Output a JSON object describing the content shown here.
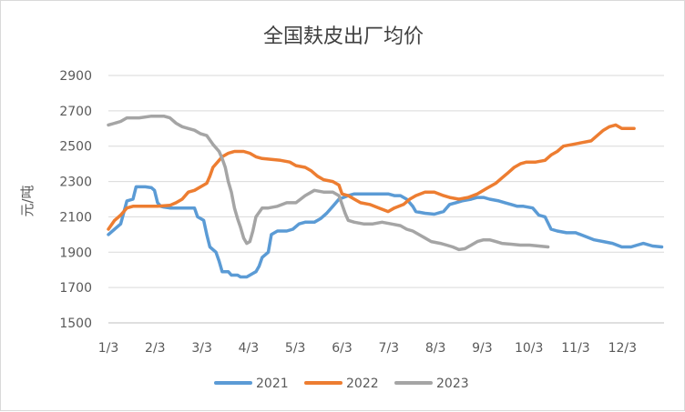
{
  "chart_data": {
    "type": "line",
    "title": "全国麸皮出厂均价",
    "ylabel": "元/吨",
    "xlabel": "",
    "ylim": [
      1500,
      2900
    ],
    "yticks": [
      1500,
      1700,
      1900,
      2100,
      2300,
      2500,
      2700,
      2900
    ],
    "xticks": [
      "1/3",
      "2/3",
      "3/3",
      "4/3",
      "5/3",
      "6/3",
      "7/3",
      "8/3",
      "9/3",
      "10/3",
      "11/3",
      "12/3"
    ],
    "xlim_days": [
      0,
      360
    ],
    "grid": true,
    "legend_position": "bottom",
    "series": [
      {
        "name": "2021",
        "color": "#5b9bd5",
        "points": [
          [
            0,
            2000
          ],
          [
            4,
            2030
          ],
          [
            8,
            2060
          ],
          [
            12,
            2190
          ],
          [
            16,
            2200
          ],
          [
            18,
            2270
          ],
          [
            24,
            2270
          ],
          [
            28,
            2265
          ],
          [
            30,
            2250
          ],
          [
            32,
            2180
          ],
          [
            34,
            2160
          ],
          [
            36,
            2155
          ],
          [
            40,
            2150
          ],
          [
            48,
            2150
          ],
          [
            56,
            2150
          ],
          [
            58,
            2100
          ],
          [
            62,
            2080
          ],
          [
            64,
            2000
          ],
          [
            66,
            1930
          ],
          [
            70,
            1900
          ],
          [
            72,
            1850
          ],
          [
            74,
            1790
          ],
          [
            78,
            1790
          ],
          [
            80,
            1770
          ],
          [
            84,
            1770
          ],
          [
            86,
            1760
          ],
          [
            90,
            1760
          ],
          [
            94,
            1780
          ],
          [
            96,
            1790
          ],
          [
            98,
            1820
          ],
          [
            100,
            1870
          ],
          [
            104,
            1900
          ],
          [
            106,
            2000
          ],
          [
            110,
            2020
          ],
          [
            116,
            2020
          ],
          [
            120,
            2030
          ],
          [
            124,
            2060
          ],
          [
            128,
            2070
          ],
          [
            134,
            2070
          ],
          [
            138,
            2090
          ],
          [
            142,
            2120
          ],
          [
            146,
            2160
          ],
          [
            150,
            2200
          ],
          [
            156,
            2220
          ],
          [
            160,
            2230
          ],
          [
            166,
            2230
          ],
          [
            172,
            2230
          ],
          [
            178,
            2230
          ],
          [
            182,
            2230
          ],
          [
            186,
            2220
          ],
          [
            190,
            2220
          ],
          [
            194,
            2200
          ],
          [
            198,
            2160
          ],
          [
            200,
            2130
          ],
          [
            206,
            2120
          ],
          [
            212,
            2115
          ],
          [
            218,
            2130
          ],
          [
            222,
            2170
          ],
          [
            226,
            2180
          ],
          [
            230,
            2190
          ],
          [
            236,
            2200
          ],
          [
            240,
            2210
          ],
          [
            244,
            2210
          ],
          [
            248,
            2200
          ],
          [
            254,
            2190
          ],
          [
            258,
            2180
          ],
          [
            262,
            2170
          ],
          [
            266,
            2160
          ],
          [
            270,
            2160
          ],
          [
            276,
            2150
          ],
          [
            280,
            2110
          ],
          [
            284,
            2100
          ],
          [
            288,
            2030
          ],
          [
            292,
            2020
          ],
          [
            298,
            2010
          ],
          [
            304,
            2010
          ],
          [
            310,
            1990
          ],
          [
            316,
            1970
          ],
          [
            322,
            1960
          ],
          [
            328,
            1950
          ],
          [
            334,
            1930
          ],
          [
            340,
            1930
          ],
          [
            344,
            1940
          ],
          [
            348,
            1950
          ],
          [
            354,
            1935
          ],
          [
            360,
            1930
          ]
        ]
      },
      {
        "name": "2022",
        "color": "#ed7d31",
        "points": [
          [
            0,
            2030
          ],
          [
            4,
            2080
          ],
          [
            8,
            2110
          ],
          [
            12,
            2150
          ],
          [
            16,
            2160
          ],
          [
            24,
            2160
          ],
          [
            32,
            2160
          ],
          [
            40,
            2165
          ],
          [
            44,
            2180
          ],
          [
            48,
            2200
          ],
          [
            52,
            2240
          ],
          [
            56,
            2250
          ],
          [
            60,
            2270
          ],
          [
            64,
            2290
          ],
          [
            66,
            2330
          ],
          [
            68,
            2380
          ],
          [
            72,
            2420
          ],
          [
            74,
            2440
          ],
          [
            78,
            2460
          ],
          [
            82,
            2470
          ],
          [
            88,
            2470
          ],
          [
            92,
            2460
          ],
          [
            96,
            2440
          ],
          [
            100,
            2430
          ],
          [
            106,
            2425
          ],
          [
            112,
            2420
          ],
          [
            118,
            2410
          ],
          [
            122,
            2390
          ],
          [
            128,
            2380
          ],
          [
            132,
            2360
          ],
          [
            136,
            2330
          ],
          [
            140,
            2310
          ],
          [
            146,
            2300
          ],
          [
            150,
            2280
          ],
          [
            152,
            2230
          ],
          [
            156,
            2220
          ],
          [
            160,
            2200
          ],
          [
            164,
            2180
          ],
          [
            170,
            2170
          ],
          [
            176,
            2150
          ],
          [
            182,
            2130
          ],
          [
            186,
            2150
          ],
          [
            192,
            2170
          ],
          [
            196,
            2200
          ],
          [
            200,
            2220
          ],
          [
            206,
            2240
          ],
          [
            212,
            2240
          ],
          [
            218,
            2220
          ],
          [
            222,
            2210
          ],
          [
            228,
            2200
          ],
          [
            234,
            2210
          ],
          [
            240,
            2230
          ],
          [
            246,
            2260
          ],
          [
            252,
            2290
          ],
          [
            256,
            2320
          ],
          [
            260,
            2350
          ],
          [
            264,
            2380
          ],
          [
            268,
            2400
          ],
          [
            272,
            2410
          ],
          [
            278,
            2410
          ],
          [
            284,
            2420
          ],
          [
            288,
            2450
          ],
          [
            292,
            2470
          ],
          [
            296,
            2500
          ],
          [
            302,
            2510
          ],
          [
            308,
            2520
          ],
          [
            314,
            2530
          ],
          [
            318,
            2560
          ],
          [
            322,
            2590
          ],
          [
            326,
            2610
          ],
          [
            330,
            2620
          ],
          [
            334,
            2600
          ],
          [
            338,
            2600
          ],
          [
            342,
            2600
          ]
        ]
      },
      {
        "name": "2023",
        "color": "#a5a5a5",
        "points": [
          [
            0,
            2620
          ],
          [
            4,
            2630
          ],
          [
            8,
            2640
          ],
          [
            12,
            2660
          ],
          [
            20,
            2660
          ],
          [
            28,
            2670
          ],
          [
            36,
            2670
          ],
          [
            40,
            2660
          ],
          [
            44,
            2630
          ],
          [
            48,
            2610
          ],
          [
            52,
            2600
          ],
          [
            56,
            2590
          ],
          [
            60,
            2570
          ],
          [
            64,
            2560
          ],
          [
            68,
            2510
          ],
          [
            72,
            2470
          ],
          [
            74,
            2430
          ],
          [
            76,
            2380
          ],
          [
            78,
            2300
          ],
          [
            80,
            2240
          ],
          [
            82,
            2150
          ],
          [
            84,
            2090
          ],
          [
            86,
            2040
          ],
          [
            88,
            1980
          ],
          [
            90,
            1950
          ],
          [
            92,
            1960
          ],
          [
            94,
            2020
          ],
          [
            96,
            2100
          ],
          [
            100,
            2150
          ],
          [
            104,
            2150
          ],
          [
            110,
            2160
          ],
          [
            116,
            2180
          ],
          [
            122,
            2180
          ],
          [
            128,
            2220
          ],
          [
            134,
            2250
          ],
          [
            140,
            2240
          ],
          [
            146,
            2240
          ],
          [
            150,
            2220
          ],
          [
            154,
            2120
          ],
          [
            156,
            2080
          ],
          [
            160,
            2070
          ],
          [
            166,
            2060
          ],
          [
            172,
            2060
          ],
          [
            178,
            2070
          ],
          [
            184,
            2060
          ],
          [
            190,
            2050
          ],
          [
            194,
            2030
          ],
          [
            198,
            2020
          ],
          [
            202,
            2000
          ],
          [
            206,
            1980
          ],
          [
            210,
            1960
          ],
          [
            216,
            1950
          ],
          [
            220,
            1940
          ],
          [
            224,
            1930
          ],
          [
            228,
            1915
          ],
          [
            232,
            1920
          ],
          [
            236,
            1940
          ],
          [
            240,
            1960
          ],
          [
            244,
            1970
          ],
          [
            248,
            1970
          ],
          [
            252,
            1960
          ],
          [
            256,
            1950
          ],
          [
            262,
            1945
          ],
          [
            268,
            1940
          ],
          [
            274,
            1940
          ],
          [
            280,
            1935
          ],
          [
            286,
            1930
          ]
        ]
      }
    ]
  }
}
